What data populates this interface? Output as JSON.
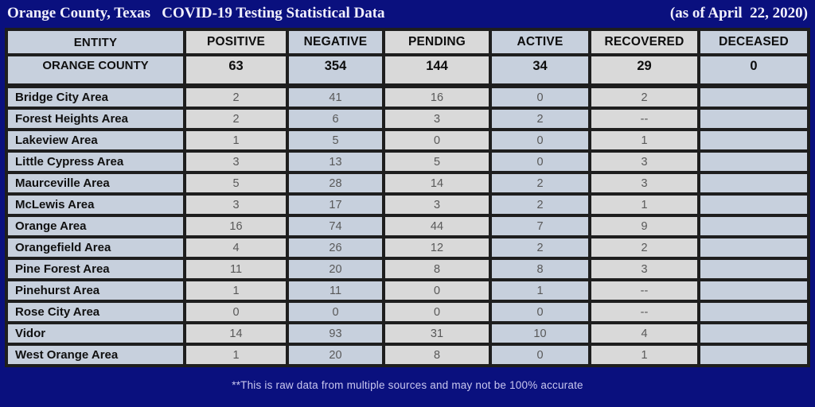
{
  "header": {
    "title": "Orange County, Texas   COVID-19 Testing Statistical Data",
    "as_of": "(as of April  22, 2020)"
  },
  "footer": {
    "note": "**This is raw data from multiple sources and may not be 100% accurate"
  },
  "colors": {
    "background_navy": "#0a107e",
    "border_dark": "#1e1e1e",
    "cell_gray": "#d9d9d9",
    "cell_blue": "#c7d0dd",
    "title_text": "#f1f0fc",
    "footer_text": "#c9c7ef",
    "number_text": "#585858"
  },
  "chart_data": {
    "type": "table",
    "title": "Orange County, Texas COVID-19 Testing Statistical Data",
    "as_of": "(as of April 22, 2020)",
    "columns": [
      "ENTITY",
      "POSITIVE",
      "NEGATIVE",
      "PENDING",
      "ACTIVE",
      "RECOVERED",
      "DECEASED"
    ],
    "total_row": {
      "entity": "ORANGE COUNTY",
      "values": [
        "63",
        "354",
        "144",
        "34",
        "29",
        "0"
      ]
    },
    "rows": [
      {
        "entity": "Bridge City Area",
        "values": [
          "2",
          "41",
          "16",
          "0",
          "2",
          ""
        ]
      },
      {
        "entity": "Forest Heights Area",
        "values": [
          "2",
          "6",
          "3",
          "2",
          "--",
          ""
        ]
      },
      {
        "entity": "Lakeview Area",
        "values": [
          "1",
          "5",
          "0",
          "0",
          "1",
          ""
        ]
      },
      {
        "entity": "Little Cypress Area",
        "values": [
          "3",
          "13",
          "5",
          "0",
          "3",
          ""
        ]
      },
      {
        "entity": "Maurceville Area",
        "values": [
          "5",
          "28",
          "14",
          "2",
          "3",
          ""
        ]
      },
      {
        "entity": "McLewis Area",
        "values": [
          "3",
          "17",
          "3",
          "2",
          "1",
          ""
        ]
      },
      {
        "entity": "Orange Area",
        "values": [
          "16",
          "74",
          "44",
          "7",
          "9",
          ""
        ]
      },
      {
        "entity": "Orangefield Area",
        "values": [
          "4",
          "26",
          "12",
          "2",
          "2",
          ""
        ]
      },
      {
        "entity": "Pine Forest Area",
        "values": [
          "11",
          "20",
          "8",
          "8",
          "3",
          ""
        ]
      },
      {
        "entity": "Pinehurst Area",
        "values": [
          "1",
          "11",
          "0",
          "1",
          "--",
          ""
        ]
      },
      {
        "entity": "Rose City Area",
        "values": [
          "0",
          "0",
          "0",
          "0",
          "--",
          ""
        ]
      },
      {
        "entity": "Vidor",
        "values": [
          "14",
          "93",
          "31",
          "10",
          "4",
          ""
        ]
      },
      {
        "entity": "West Orange Area",
        "values": [
          "1",
          "20",
          "8",
          "0",
          "1",
          ""
        ]
      }
    ]
  }
}
